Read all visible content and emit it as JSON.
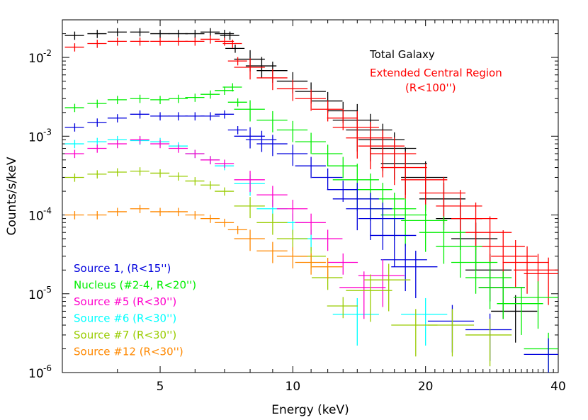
{
  "chart_data": {
    "type": "scatter",
    "xlabel": "Energy (keV)",
    "ylabel": "Counts/s/keV",
    "x_scale": "log",
    "y_scale": "log",
    "xlim": [
      3,
      40
    ],
    "ylim": [
      1e-06,
      0.03
    ],
    "x_ticks": [
      {
        "value": 5,
        "label": "5"
      },
      {
        "value": 10,
        "label": "10"
      },
      {
        "value": 20,
        "label": "20"
      },
      {
        "value": 40,
        "label": "40"
      }
    ],
    "y_ticks": [
      {
        "value": 0.01,
        "base": "10",
        "exp": "-2"
      },
      {
        "value": 0.001,
        "base": "10",
        "exp": "-3"
      },
      {
        "value": 0.0001,
        "base": "10",
        "exp": "-4"
      },
      {
        "value": 1e-05,
        "base": "10",
        "exp": "-5"
      },
      {
        "value": 1e-06,
        "base": "10",
        "exp": "-6"
      }
    ],
    "series": [
      {
        "name": "Total Galaxy",
        "color": "#000000",
        "key": "total",
        "points": [
          [
            3.2,
            0.019
          ],
          [
            3.6,
            0.02
          ],
          [
            4.0,
            0.021
          ],
          [
            4.5,
            0.021
          ],
          [
            5.0,
            0.02
          ],
          [
            5.5,
            0.02
          ],
          [
            6.0,
            0.02
          ],
          [
            6.5,
            0.021
          ],
          [
            7.0,
            0.02
          ],
          [
            7.2,
            0.019
          ],
          [
            7.4,
            0.013
          ],
          [
            8.0,
            0.0095
          ],
          [
            8.5,
            0.0078
          ],
          [
            9.0,
            0.0068
          ],
          [
            10.0,
            0.005
          ],
          [
            11.0,
            0.0037
          ],
          [
            12.0,
            0.0028
          ],
          [
            13.0,
            0.0021
          ],
          [
            14.0,
            0.0016
          ],
          [
            15.0,
            0.0012
          ],
          [
            16.0,
            0.0009
          ],
          [
            17.0,
            0.0007
          ],
          [
            18.0,
            0.00045
          ],
          [
            20.0,
            0.0003
          ],
          [
            22.0,
            0.00016
          ],
          [
            24.0,
            9e-05
          ],
          [
            26.0,
            5e-05
          ],
          [
            28.0,
            2e-05
          ],
          [
            30.0,
            1.2e-05
          ],
          [
            32.0,
            6e-06
          ]
        ]
      },
      {
        "name": "Extended Central Region",
        "color": "#ff0000",
        "key": "ext",
        "points": [
          [
            3.2,
            0.0135
          ],
          [
            3.6,
            0.015
          ],
          [
            4.0,
            0.016
          ],
          [
            4.5,
            0.016
          ],
          [
            5.0,
            0.016
          ],
          [
            5.5,
            0.016
          ],
          [
            6.0,
            0.016
          ],
          [
            6.5,
            0.017
          ],
          [
            7.0,
            0.016
          ],
          [
            7.3,
            0.015
          ],
          [
            7.5,
            0.009
          ],
          [
            8.0,
            0.0075
          ],
          [
            9.0,
            0.0055
          ],
          [
            10.0,
            0.004
          ],
          [
            11.0,
            0.003
          ],
          [
            12.0,
            0.0022
          ],
          [
            13.0,
            0.0017
          ],
          [
            14.0,
            0.0013
          ],
          [
            15.0,
            0.00095
          ],
          [
            16.0,
            0.00075
          ],
          [
            17.0,
            0.0006
          ],
          [
            18.0,
            0.0004
          ],
          [
            20.0,
            0.00028
          ],
          [
            22.0,
            0.00019
          ],
          [
            24.0,
            0.00013
          ],
          [
            26.0,
            9e-05
          ],
          [
            28.0,
            6e-05
          ],
          [
            30.0,
            4e-05
          ],
          [
            32.0,
            3e-05
          ],
          [
            34.0,
            2.5e-05
          ],
          [
            36.0,
            2e-05
          ],
          [
            38.0,
            1.8e-05
          ]
        ]
      },
      {
        "name": "Source 1, (R<15'')",
        "color": "#0000dd",
        "key": "src1",
        "points": [
          [
            3.2,
            0.0013
          ],
          [
            3.6,
            0.0015
          ],
          [
            4.0,
            0.0017
          ],
          [
            4.5,
            0.0019
          ],
          [
            5.0,
            0.0018
          ],
          [
            5.5,
            0.0018
          ],
          [
            6.0,
            0.0018
          ],
          [
            6.5,
            0.0018
          ],
          [
            7.0,
            0.0019
          ],
          [
            7.5,
            0.0012
          ],
          [
            8.0,
            0.001
          ],
          [
            8.5,
            0.0009
          ],
          [
            9.0,
            0.0008
          ],
          [
            10.0,
            0.0006
          ],
          [
            11.0,
            0.00042
          ],
          [
            12.0,
            0.0003
          ],
          [
            13.0,
            0.00021
          ],
          [
            14.0,
            0.00016
          ],
          [
            15.0,
            0.00012
          ],
          [
            16.0,
            9e-05
          ],
          [
            17.0,
            5.5e-05
          ],
          [
            18.0,
            2.7e-05
          ],
          [
            19.0,
            2.2e-05
          ],
          [
            23.0,
            4.5e-06
          ],
          [
            28.0,
            3.5e-06
          ],
          [
            38.0,
            1.7e-06
          ]
        ]
      },
      {
        "name": "Nucleus (#2-4, R<20'')",
        "color": "#00ee00",
        "key": "nuc",
        "points": [
          [
            3.2,
            0.0023
          ],
          [
            3.6,
            0.0026
          ],
          [
            4.0,
            0.0029
          ],
          [
            4.5,
            0.003
          ],
          [
            5.0,
            0.0029
          ],
          [
            5.5,
            0.003
          ],
          [
            6.0,
            0.0031
          ],
          [
            6.5,
            0.0034
          ],
          [
            7.0,
            0.0038
          ],
          [
            7.3,
            0.0042
          ],
          [
            7.5,
            0.0027
          ],
          [
            8.0,
            0.0022
          ],
          [
            9.0,
            0.0016
          ],
          [
            10.0,
            0.0012
          ],
          [
            11.0,
            0.00085
          ],
          [
            12.0,
            0.0006
          ],
          [
            13.0,
            0.00042
          ],
          [
            14.0,
            0.00028
          ],
          [
            15.0,
            0.00021
          ],
          [
            16.0,
            0.00016
          ],
          [
            17.0,
            0.00012
          ],
          [
            18.0,
            0.0001
          ],
          [
            20.0,
            8.5e-05
          ],
          [
            22.0,
            6e-05
          ],
          [
            24.0,
            4e-05
          ],
          [
            26.0,
            2.5e-05
          ],
          [
            28.0,
            1.6e-05
          ],
          [
            30.0,
            1.2e-05
          ],
          [
            33.0,
            7.5e-06
          ],
          [
            36.0,
            9e-06
          ],
          [
            38.0,
            2e-06
          ]
        ]
      },
      {
        "name": "Source #5 (R<30'')",
        "color": "#ff00cc",
        "key": "src5",
        "points": [
          [
            3.2,
            0.0006
          ],
          [
            3.6,
            0.0007
          ],
          [
            4.0,
            0.0008
          ],
          [
            4.5,
            0.0009
          ],
          [
            5.0,
            0.0008
          ],
          [
            5.5,
            0.0007
          ],
          [
            6.0,
            0.0006
          ],
          [
            6.5,
            0.0005
          ],
          [
            7.0,
            0.00045
          ],
          [
            8.0,
            0.00028
          ],
          [
            9.0,
            0.00018
          ],
          [
            10.0,
            0.00012
          ],
          [
            11.0,
            8e-05
          ],
          [
            12.0,
            5e-05
          ],
          [
            13.0,
            2.5e-05
          ],
          [
            14.5,
            1.2e-05
          ],
          [
            16.0,
            1.7e-05
          ]
        ]
      },
      {
        "name": "Source #6 (R<30'')",
        "color": "#00ffff",
        "key": "src6",
        "points": [
          [
            3.2,
            0.0008
          ],
          [
            3.6,
            0.00085
          ],
          [
            4.0,
            0.0009
          ],
          [
            4.5,
            0.00088
          ],
          [
            5.0,
            0.00085
          ],
          [
            5.5,
            0.00075
          ],
          [
            6.0,
            0.0006
          ],
          [
            6.5,
            0.0005
          ],
          [
            7.0,
            0.00042
          ],
          [
            8.0,
            0.00025
          ],
          [
            9.0,
            0.00012
          ],
          [
            10.0,
            8e-05
          ],
          [
            11.0,
            5e-05
          ],
          [
            14.0,
            5.5e-06
          ],
          [
            20.0,
            5.5e-06
          ]
        ]
      },
      {
        "name": "Source #7 (R<30'')",
        "color": "#99cc00",
        "key": "src7",
        "points": [
          [
            3.2,
            0.0003
          ],
          [
            3.6,
            0.00033
          ],
          [
            4.0,
            0.00035
          ],
          [
            4.5,
            0.00036
          ],
          [
            5.0,
            0.00034
          ],
          [
            5.5,
            0.00031
          ],
          [
            6.0,
            0.00027
          ],
          [
            6.5,
            0.00024
          ],
          [
            7.0,
            0.0002
          ],
          [
            8.0,
            0.00013
          ],
          [
            9.0,
            8e-05
          ],
          [
            10.0,
            5e-05
          ],
          [
            11.0,
            3e-05
          ],
          [
            12.0,
            1.6e-05
          ],
          [
            13.0,
            7e-06
          ],
          [
            15.0,
            1.1e-05
          ],
          [
            16.5,
            1.5e-05
          ],
          [
            19.0,
            4e-06
          ],
          [
            23.0,
            4e-06
          ],
          [
            28.0,
            3e-06
          ]
        ]
      },
      {
        "name": "Source #12 (R<30'')",
        "color": "#ff8800",
        "key": "src12",
        "points": [
          [
            3.2,
            0.0001
          ],
          [
            3.6,
            0.0001
          ],
          [
            4.0,
            0.00011
          ],
          [
            4.5,
            0.00012
          ],
          [
            5.0,
            0.00011
          ],
          [
            5.5,
            0.00011
          ],
          [
            6.0,
            0.0001
          ],
          [
            6.5,
            9e-05
          ],
          [
            7.0,
            8e-05
          ],
          [
            7.5,
            6.5e-05
          ],
          [
            8.0,
            5e-05
          ],
          [
            9.0,
            3.5e-05
          ],
          [
            10.0,
            3e-05
          ],
          [
            11.0,
            2.5e-05
          ],
          [
            12.0,
            2.2e-05
          ]
        ]
      }
    ],
    "annotations": [
      {
        "key": "total",
        "text": "Total Galaxy",
        "color": "#000000"
      },
      {
        "key": "ext1",
        "text": "Extended Central Region",
        "color": "#ff0000"
      },
      {
        "key": "ext2",
        "text": "(R<100'')",
        "color": "#ff0000"
      }
    ],
    "legend_placement": "bottom-left",
    "legend": [
      {
        "text": "Source 1, (R<15'')",
        "color": "#0000dd"
      },
      {
        "text": "Nucleus (#2-4, R<20'')",
        "color": "#00ee00"
      },
      {
        "text": "Source #5 (R<30'')",
        "color": "#ff00cc"
      },
      {
        "text": "Source #6 (R<30'')",
        "color": "#00ffff"
      },
      {
        "text": "Source #7 (R<30'')",
        "color": "#99cc00"
      },
      {
        "text": "Source #12 (R<30'')",
        "color": "#ff8800"
      }
    ]
  }
}
